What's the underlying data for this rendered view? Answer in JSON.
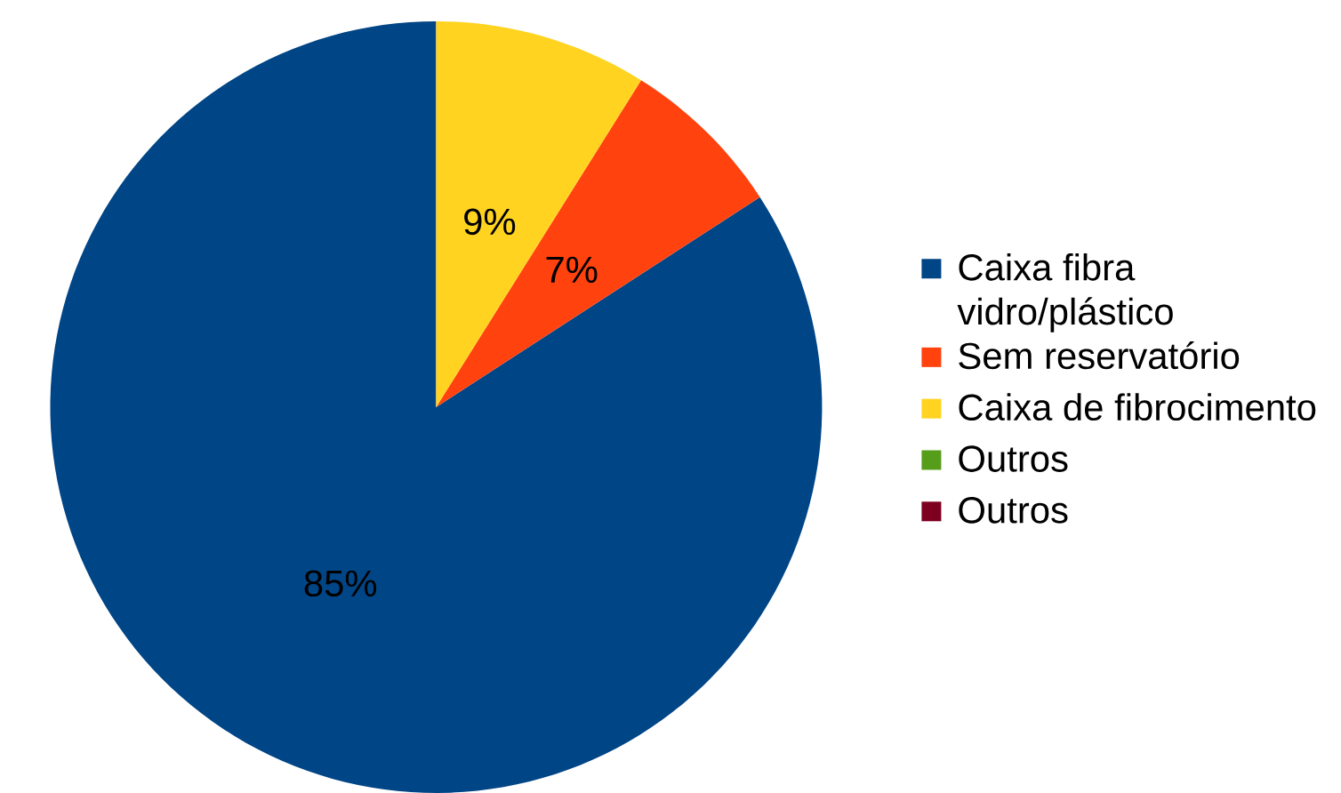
{
  "chart_data": {
    "type": "pie",
    "categories": [
      "Caixa fibra vidro/plástico",
      "Sem reservatório",
      "Caixa de fibrocimento",
      "Outros",
      "Outros"
    ],
    "values": [
      85,
      7,
      9,
      0,
      0
    ],
    "value_labels": [
      "85%",
      "7%",
      "9%",
      null,
      null
    ],
    "colors": [
      "#004586",
      "#ff420e",
      "#ffd320",
      "#579d1c",
      "#7e0021"
    ],
    "legend": "right"
  }
}
